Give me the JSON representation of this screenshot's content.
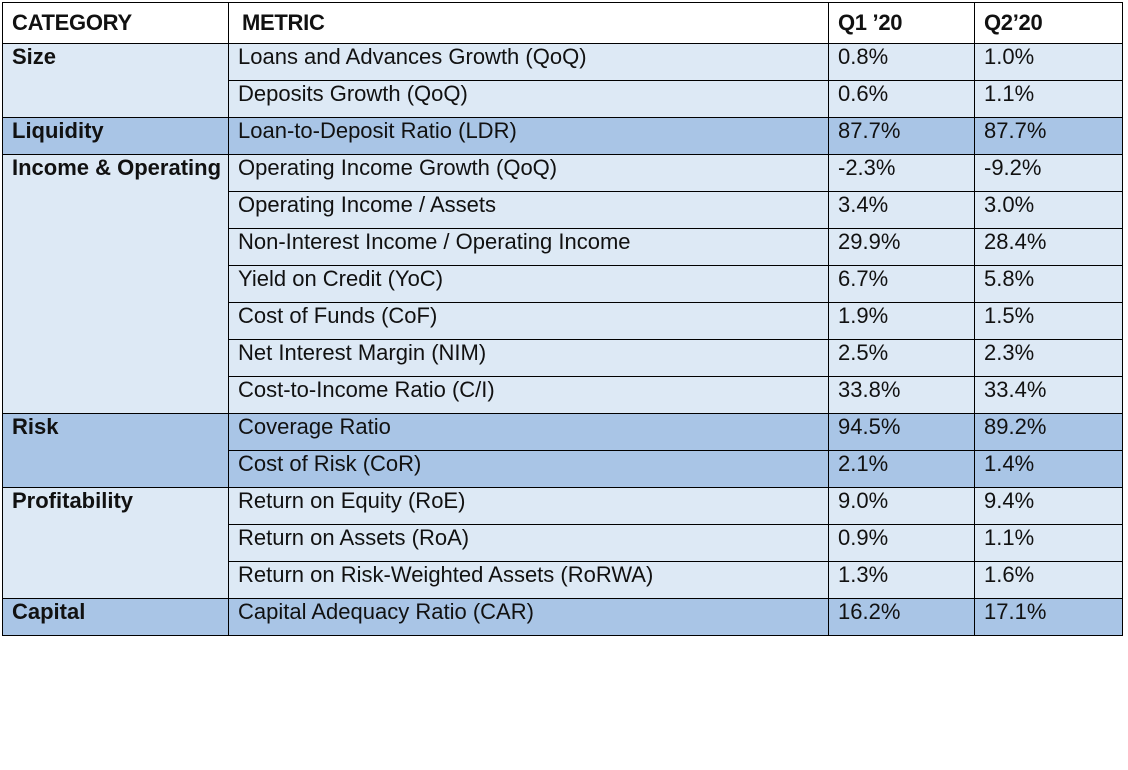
{
  "header": {
    "category": "CATEGORY",
    "metric": "METRIC",
    "q1": "Q1 ’20",
    "q2": "Q2’20"
  },
  "groups": [
    {
      "category": "Size",
      "shade": "light",
      "rows": [
        {
          "metric": "Loans and Advances Growth (QoQ)",
          "q1": "0.8%",
          "q2": "1.0%"
        },
        {
          "metric": "Deposits Growth (QoQ)",
          "q1": "0.6%",
          "q2": "1.1%"
        }
      ]
    },
    {
      "category": "Liquidity",
      "shade": "dark",
      "rows": [
        {
          "metric": "Loan-to-Deposit Ratio (LDR)",
          "q1": "87.7%",
          "q2": "87.7%"
        }
      ]
    },
    {
      "category": "Income & Operating Efficiency",
      "shade": "light",
      "rows": [
        {
          "metric": "Operating Income Growth (QoQ)",
          "q1": "-2.3%",
          "q2": "-9.2%"
        },
        {
          "metric": "Operating Income / Assets",
          "q1": "3.4%",
          "q2": "3.0%"
        },
        {
          "metric": "Non-Interest Income / Operating Income",
          "q1": "29.9%",
          "q2": "28.4%"
        },
        {
          "metric": "Yield on Credit (YoC)",
          "q1": "6.7%",
          "q2": "5.8%"
        },
        {
          "metric": "Cost of Funds (CoF)",
          "q1": "1.9%",
          "q2": "1.5%"
        },
        {
          "metric": "Net Interest Margin (NIM)",
          "q1": "2.5%",
          "q2": "2.3%"
        },
        {
          "metric": "Cost-to-Income Ratio (C/I)",
          "q1": "33.8%",
          "q2": "33.4%"
        }
      ]
    },
    {
      "category": "Risk",
      "shade": "dark",
      "rows": [
        {
          "metric": "Coverage Ratio",
          "q1": "94.5%",
          "q2": "89.2%"
        },
        {
          "metric": "Cost of Risk (CoR)",
          "q1": "2.1%",
          "q2": "1.4%"
        }
      ]
    },
    {
      "category": "Profitability",
      "shade": "light",
      "rows": [
        {
          "metric": "Return on Equity (RoE)",
          "q1": "9.0%",
          "q2": "9.4%"
        },
        {
          "metric": "Return on Assets (RoA)",
          "q1": "0.9%",
          "q2": "1.1%"
        },
        {
          "metric": "Return on Risk-Weighted Assets (RoRWA)",
          "q1": "1.3%",
          "q2": "1.6%"
        }
      ]
    },
    {
      "category": "Capital",
      "shade": "dark",
      "rows": [
        {
          "metric": "Capital Adequacy Ratio (CAR)",
          "q1": "16.2%",
          "q2": "17.1%"
        }
      ]
    }
  ],
  "colors": {
    "light_row": "#dde9f5",
    "dark_row": "#a9c5e6",
    "header_bg": "#ffffff",
    "border": "#000000"
  }
}
